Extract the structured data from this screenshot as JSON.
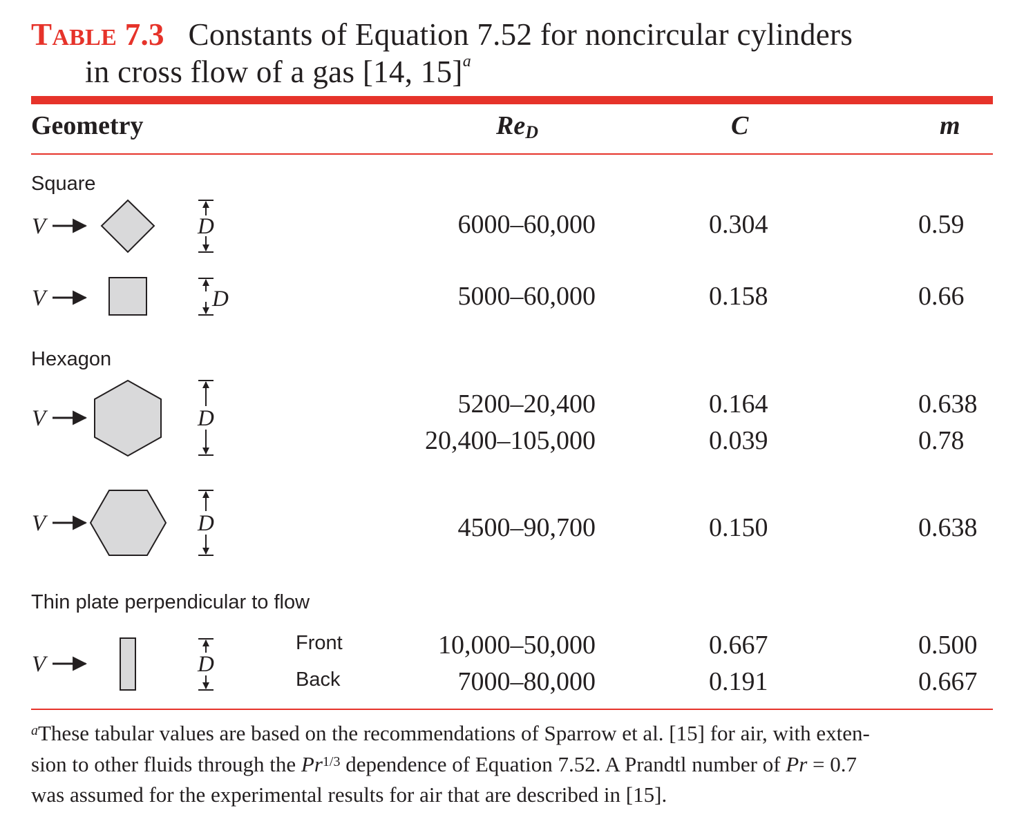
{
  "title": {
    "label_prefix": "T",
    "label_smallcaps": "ABLE",
    "label_number": "7.3",
    "line1": "Constants of Equation 7.52 for noncircular cylinders",
    "line2": "in cross flow of a gas [14, 15]",
    "footnote_mark": "a"
  },
  "header": {
    "geometry": "Geometry",
    "re": "Re",
    "re_sub": "D",
    "c": "C",
    "m": "m"
  },
  "labels": {
    "velocity": "V",
    "dimension": "D"
  },
  "sections": {
    "square": "Square",
    "hexagon": "Hexagon",
    "thin_plate": "Thin plate perpendicular to flow"
  },
  "rows": [
    {
      "re": "6000–60,000",
      "c": "0.304",
      "m": "0.59"
    },
    {
      "re": "5000–60,000",
      "c": "0.158",
      "m": "0.66"
    },
    {
      "re": "5200–20,400",
      "c": "0.164",
      "m": "0.638"
    },
    {
      "re": "20,400–105,000",
      "c": "0.039",
      "m": "0.78"
    },
    {
      "re": "4500–90,700",
      "c": "0.150",
      "m": "0.638"
    },
    {
      "sub": "Front",
      "re": "10,000–50,000",
      "c": "0.667",
      "m": "0.500"
    },
    {
      "sub": "Back",
      "re": "7000–80,000",
      "c": "0.191",
      "m": "0.667"
    }
  ],
  "footnote": {
    "mark": "a",
    "line1": "These tabular values are based on the recommendations of Sparrow et al. [15] for air, with exten-",
    "line2_a": "sion to other fluids through the ",
    "pr": "Pr",
    "exp": "1/3",
    "line2_b": " dependence of Equation 7.52. A Prandtl number of ",
    "pr2": "Pr",
    "line2_c": " = 0.7",
    "line3": "was assumed for the experimental results for air that are described in [15]."
  },
  "colors": {
    "accent": "#e6332a",
    "shape_fill": "#d9d9da",
    "text": "#231f20"
  }
}
